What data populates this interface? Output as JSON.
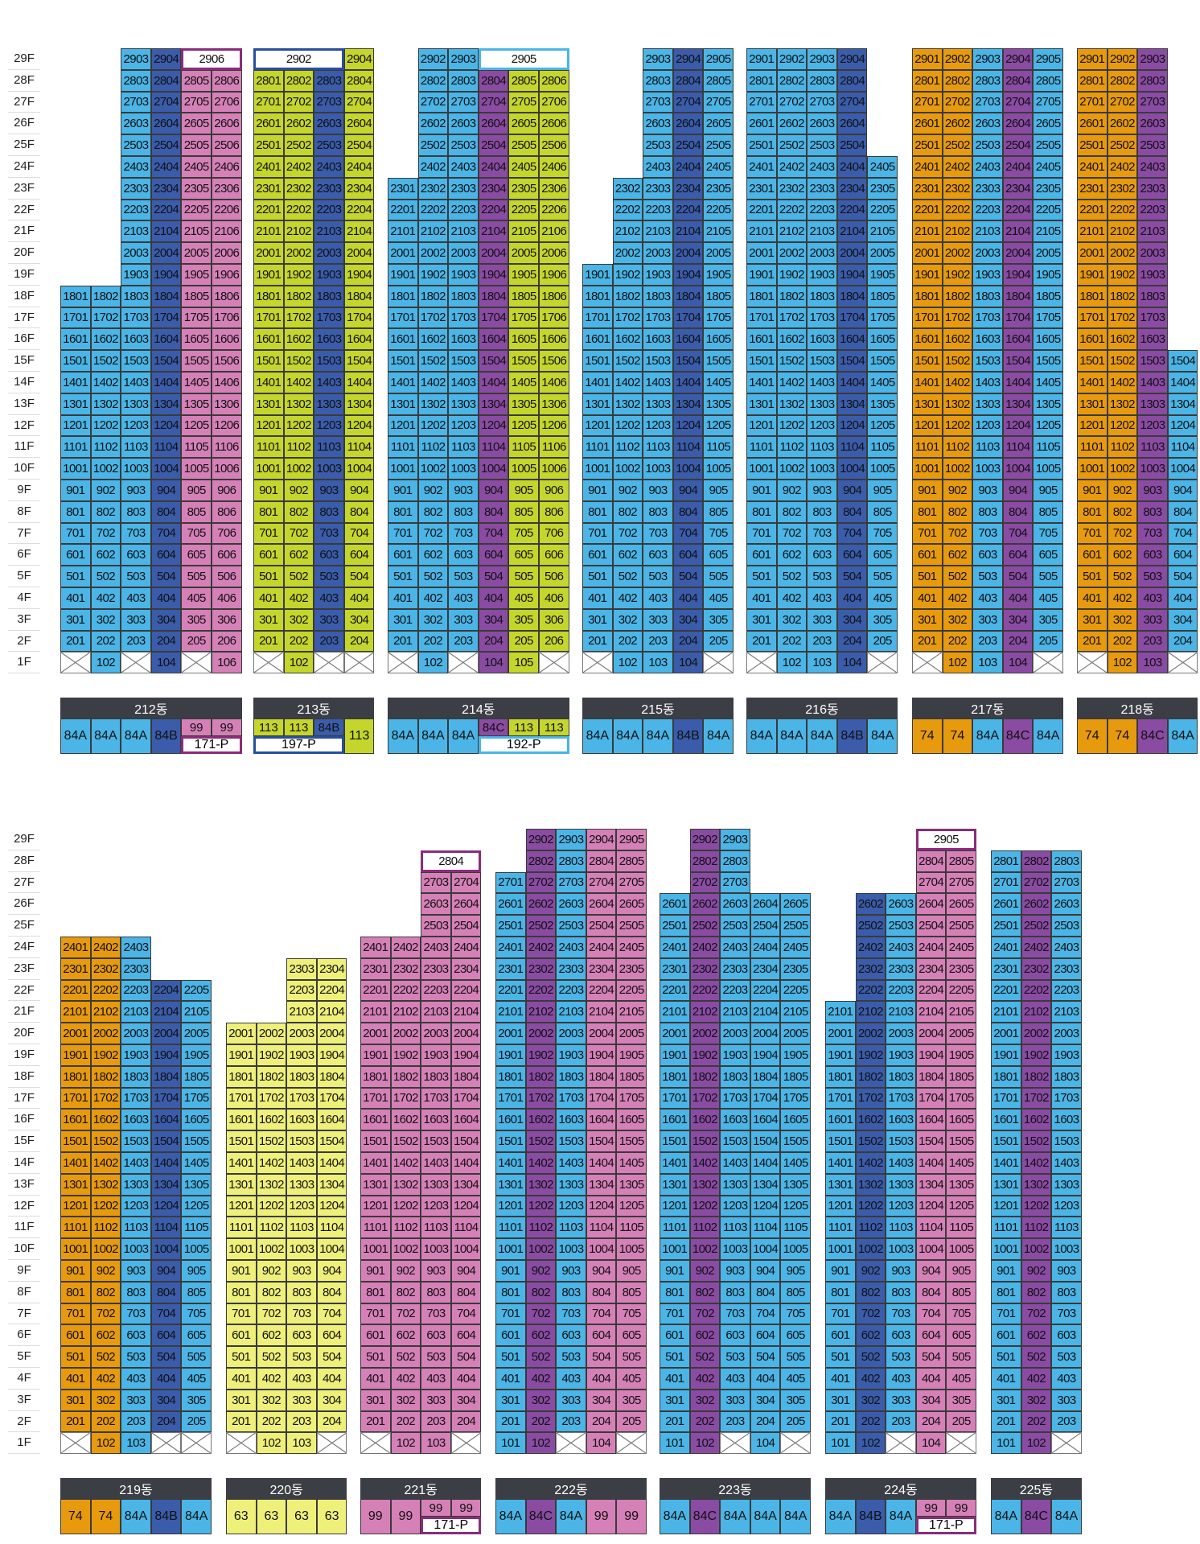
{
  "floor_labels": [
    "29F",
    "28F",
    "27F",
    "26F",
    "25F",
    "24F",
    "23F",
    "22F",
    "21F",
    "20F",
    "19F",
    "18F",
    "17F",
    "16F",
    "15F",
    "14F",
    "13F",
    "12F",
    "11F",
    "10F",
    "9F",
    "8F",
    "7F",
    "6F",
    "5F",
    "4F",
    "3F",
    "2F",
    "1F"
  ],
  "type_colors": {
    "74": "#e89a0e",
    "63": "#eef07a",
    "84A": "#4ab5e6",
    "84B": "#3a5caa",
    "84C": "#8a4ba3",
    "99": "#d680b8",
    "113": "#c4d62c",
    "171-P": "#d680b8",
    "192-P": "#4ab5e6",
    "197-P": "#4ab5e6"
  },
  "box_border_colors": {
    "171-P": "#8a2c7a",
    "192-P": "#4ab5e6",
    "197-P": "#2a4e9a",
    "P": "#8a2c7a"
  },
  "buildings": [
    {
      "name": "212동",
      "columns": [
        {
          "type": "84A",
          "min": 2,
          "max": 18
        },
        {
          "type": "84A",
          "min": 1,
          "max": 18
        },
        {
          "type": "84A",
          "min": 2,
          "max": 29
        },
        {
          "type": "84B",
          "min": 1,
          "max": 29
        },
        {
          "type": "99",
          "min": 2,
          "max": 28
        },
        {
          "type": "99",
          "min": 1,
          "max": 28
        }
      ],
      "one_f": [
        "x",
        "102",
        "x",
        "104",
        "x",
        "106"
      ],
      "merged": [
        {
          "floor": 29,
          "start": 4,
          "span": 2,
          "label": "2906",
          "box": "171-P"
        }
      ],
      "legend": [
        {
          "label": "84A",
          "type": "84A"
        },
        {
          "label": "84A",
          "type": "84A"
        },
        {
          "label": "84A",
          "type": "84A"
        },
        {
          "label": "84B",
          "type": "84B"
        },
        {
          "label": "99",
          "type": "99",
          "sub": true,
          "box": "171-P"
        },
        {
          "label": "99",
          "type": "99",
          "sub": true
        }
      ],
      "legend_box": {
        "label": "171-P",
        "type": "171-P",
        "start": 4,
        "span": 2
      }
    },
    {
      "name": "213동",
      "columns": [
        {
          "type": "113",
          "min": 2,
          "max": 29
        },
        {
          "type": "113",
          "min": 1,
          "max": 29
        },
        {
          "type": "84B",
          "min": 2,
          "max": 28
        },
        {
          "type": "113",
          "min": 1,
          "max": 29
        }
      ],
      "one_f": [
        "x",
        "102",
        "x",
        "x"
      ],
      "merged": [
        {
          "floor": 29,
          "start": 0,
          "span": 3,
          "label": "2902",
          "box": "197-P"
        }
      ],
      "legend": [
        {
          "label": "113",
          "type": "113",
          "sub": true
        },
        {
          "label": "113",
          "type": "113",
          "sub": true
        },
        {
          "label": "84B",
          "type": "84B",
          "sub": true
        },
        {
          "label": "113",
          "type": "113"
        }
      ],
      "legend_box": {
        "label": "197-P",
        "type": "197-P",
        "start": 0,
        "span": 3
      }
    },
    {
      "name": "214동",
      "columns": [
        {
          "type": "84A",
          "min": 2,
          "max": 23
        },
        {
          "type": "84A",
          "min": 1,
          "max": 29
        },
        {
          "type": "84A",
          "min": 2,
          "max": 29
        },
        {
          "type": "84C",
          "min": 1,
          "max": 28
        },
        {
          "type": "113",
          "min": 1,
          "max": 28
        },
        {
          "type": "113",
          "min": 2,
          "max": 28
        }
      ],
      "one_f": [
        "x",
        "102",
        "x",
        "104",
        "105",
        "x"
      ],
      "merged": [
        {
          "floor": 29,
          "start": 3,
          "span": 3,
          "label": "2905",
          "box": "192-P"
        }
      ],
      "legend": [
        {
          "label": "84A",
          "type": "84A"
        },
        {
          "label": "84A",
          "type": "84A"
        },
        {
          "label": "84A",
          "type": "84A"
        },
        {
          "label": "84C",
          "type": "84C",
          "sub": true
        },
        {
          "label": "113",
          "type": "113",
          "sub": true
        },
        {
          "label": "113",
          "type": "113",
          "sub": true
        }
      ],
      "legend_box": {
        "label": "192-P",
        "type": "192-P",
        "start": 3,
        "span": 3
      }
    },
    {
      "name": "215동",
      "columns": [
        {
          "type": "84A",
          "min": 2,
          "max": 19
        },
        {
          "type": "84A",
          "min": 1,
          "max": 23
        },
        {
          "type": "84A",
          "min": 1,
          "max": 29
        },
        {
          "type": "84B",
          "min": 1,
          "max": 29
        },
        {
          "type": "84A",
          "min": 2,
          "max": 29
        }
      ],
      "one_f": [
        "x",
        "102",
        "103",
        "104",
        "x"
      ],
      "merged": [],
      "legend": [
        {
          "label": "84A",
          "type": "84A"
        },
        {
          "label": "84A",
          "type": "84A"
        },
        {
          "label": "84A",
          "type": "84A"
        },
        {
          "label": "84B",
          "type": "84B"
        },
        {
          "label": "84A",
          "type": "84A"
        }
      ]
    },
    {
      "name": "216동",
      "columns": [
        {
          "type": "84A",
          "min": 2,
          "max": 29
        },
        {
          "type": "84A",
          "min": 1,
          "max": 29
        },
        {
          "type": "84A",
          "min": 1,
          "max": 29
        },
        {
          "type": "84B",
          "min": 1,
          "max": 29
        },
        {
          "type": "84A",
          "min": 2,
          "max": 24
        }
      ],
      "one_f": [
        "x",
        "102",
        "103",
        "104",
        "x"
      ],
      "merged": [],
      "legend": [
        {
          "label": "84A",
          "type": "84A"
        },
        {
          "label": "84A",
          "type": "84A"
        },
        {
          "label": "84A",
          "type": "84A"
        },
        {
          "label": "84B",
          "type": "84B"
        },
        {
          "label": "84A",
          "type": "84A"
        }
      ]
    },
    {
      "name": "217동",
      "columns": [
        {
          "type": "74",
          "min": 2,
          "max": 29
        },
        {
          "type": "74",
          "min": 1,
          "max": 29
        },
        {
          "type": "84A",
          "min": 1,
          "max": 29
        },
        {
          "type": "84C",
          "min": 1,
          "max": 29
        },
        {
          "type": "84A",
          "min": 2,
          "max": 29
        }
      ],
      "one_f": [
        "x",
        "102",
        "103",
        "104",
        "x"
      ],
      "merged": [],
      "legend": [
        {
          "label": "74",
          "type": "74"
        },
        {
          "label": "74",
          "type": "74"
        },
        {
          "label": "84A",
          "type": "84A"
        },
        {
          "label": "84C",
          "type": "84C"
        },
        {
          "label": "84A",
          "type": "84A"
        }
      ]
    },
    {
      "name": "218동",
      "columns": [
        {
          "type": "74",
          "min": 2,
          "max": 29
        },
        {
          "type": "74",
          "min": 1,
          "max": 29
        },
        {
          "type": "84C",
          "min": 1,
          "max": 29
        },
        {
          "type": "84A",
          "min": 2,
          "max": 15
        }
      ],
      "one_f": [
        "x",
        "102",
        "103",
        "x"
      ],
      "merged": [],
      "legend": [
        {
          "label": "74",
          "type": "74"
        },
        {
          "label": "74",
          "type": "74"
        },
        {
          "label": "84C",
          "type": "84C"
        },
        {
          "label": "84A",
          "type": "84A"
        }
      ]
    },
    {
      "name": "219동",
      "columns": [
        {
          "type": "74",
          "min": 2,
          "max": 24
        },
        {
          "type": "74",
          "min": 1,
          "max": 24
        },
        {
          "type": "84A",
          "min": 1,
          "max": 24
        },
        {
          "type": "84B",
          "min": 2,
          "max": 22
        },
        {
          "type": "84A",
          "min": 2,
          "max": 22
        }
      ],
      "one_f": [
        "x",
        "102",
        "103",
        "x",
        "x"
      ],
      "merged": [],
      "legend": [
        {
          "label": "74",
          "type": "74"
        },
        {
          "label": "74",
          "type": "74"
        },
        {
          "label": "84A",
          "type": "84A"
        },
        {
          "label": "84B",
          "type": "84B"
        },
        {
          "label": "84A",
          "type": "84A"
        }
      ]
    },
    {
      "name": "220동",
      "columns": [
        {
          "type": "63",
          "min": 2,
          "max": 20
        },
        {
          "type": "63",
          "min": 1,
          "max": 20
        },
        {
          "type": "63",
          "min": 1,
          "max": 23
        },
        {
          "type": "63",
          "min": 2,
          "max": 23
        }
      ],
      "one_f": [
        "x",
        "102",
        "103",
        "x"
      ],
      "merged": [],
      "legend": [
        {
          "label": "63",
          "type": "63"
        },
        {
          "label": "63",
          "type": "63"
        },
        {
          "label": "63",
          "type": "63"
        },
        {
          "label": "63",
          "type": "63"
        }
      ]
    },
    {
      "name": "221동",
      "columns": [
        {
          "type": "99",
          "min": 2,
          "max": 24
        },
        {
          "type": "99",
          "min": 1,
          "max": 24
        },
        {
          "type": "99",
          "min": 1,
          "max": 28
        },
        {
          "type": "99",
          "min": 2,
          "max": 28
        }
      ],
      "one_f": [
        "x",
        "102",
        "103",
        "x"
      ],
      "merged": [
        {
          "floor": 28,
          "start": 2,
          "span": 2,
          "label": "2804",
          "box": "P"
        }
      ],
      "legend": [
        {
          "label": "99",
          "type": "99"
        },
        {
          "label": "99",
          "type": "99"
        },
        {
          "label": "99",
          "type": "99",
          "sub": true
        },
        {
          "label": "99",
          "type": "99",
          "sub": true
        }
      ],
      "legend_box": {
        "label": "171-P",
        "type": "171-P",
        "start": 2,
        "span": 2
      }
    },
    {
      "name": "222동",
      "columns": [
        {
          "type": "84A",
          "min": 1,
          "max": 27
        },
        {
          "type": "84C",
          "min": 1,
          "max": 29
        },
        {
          "type": "84A",
          "min": 2,
          "max": 29
        },
        {
          "type": "99",
          "min": 1,
          "max": 29
        },
        {
          "type": "99",
          "min": 2,
          "max": 29
        }
      ],
      "one_f": [
        "101",
        "102",
        "x",
        "104",
        "x"
      ],
      "merged": [],
      "legend": [
        {
          "label": "84A",
          "type": "84A"
        },
        {
          "label": "84C",
          "type": "84C"
        },
        {
          "label": "84A",
          "type": "84A"
        },
        {
          "label": "99",
          "type": "99"
        },
        {
          "label": "99",
          "type": "99"
        }
      ]
    },
    {
      "name": "223동",
      "columns": [
        {
          "type": "84A",
          "min": 1,
          "max": 26
        },
        {
          "type": "84C",
          "min": 1,
          "max": 29
        },
        {
          "type": "84A",
          "min": 2,
          "max": 29
        },
        {
          "type": "84A",
          "min": 1,
          "max": 26
        },
        {
          "type": "84A",
          "min": 2,
          "max": 26
        }
      ],
      "one_f": [
        "101",
        "102",
        "x",
        "104",
        "x"
      ],
      "merged": [],
      "legend": [
        {
          "label": "84A",
          "type": "84A"
        },
        {
          "label": "84C",
          "type": "84C"
        },
        {
          "label": "84A",
          "type": "84A"
        },
        {
          "label": "84A",
          "type": "84A"
        },
        {
          "label": "84A",
          "type": "84A"
        }
      ]
    },
    {
      "name": "224동",
      "columns": [
        {
          "type": "84A",
          "min": 1,
          "max": 21
        },
        {
          "type": "84B",
          "min": 1,
          "max": 26
        },
        {
          "type": "84A",
          "min": 2,
          "max": 26
        },
        {
          "type": "99",
          "min": 1,
          "max": 28
        },
        {
          "type": "99",
          "min": 2,
          "max": 28
        }
      ],
      "one_f": [
        "101",
        "102",
        "x",
        "104",
        "x"
      ],
      "merged": [
        {
          "floor": 29,
          "start": 3,
          "span": 2,
          "label": "2905",
          "box": "P"
        }
      ],
      "legend": [
        {
          "label": "84A",
          "type": "84A"
        },
        {
          "label": "84B",
          "type": "84B"
        },
        {
          "label": "84A",
          "type": "84A"
        },
        {
          "label": "99",
          "type": "99",
          "sub": true
        },
        {
          "label": "99",
          "type": "99",
          "sub": true
        }
      ],
      "legend_box": {
        "label": "171-P",
        "type": "171-P",
        "start": 3,
        "span": 2
      }
    },
    {
      "name": "225동",
      "columns": [
        {
          "type": "84A",
          "min": 1,
          "max": 28
        },
        {
          "type": "84C",
          "min": 1,
          "max": 28
        },
        {
          "type": "84A",
          "min": 2,
          "max": 28
        }
      ],
      "one_f": [
        "101",
        "102",
        "x"
      ],
      "merged": [],
      "legend": [
        {
          "label": "84A",
          "type": "84A"
        },
        {
          "label": "84C",
          "type": "84C"
        },
        {
          "label": "84A",
          "type": "84A"
        }
      ]
    }
  ]
}
